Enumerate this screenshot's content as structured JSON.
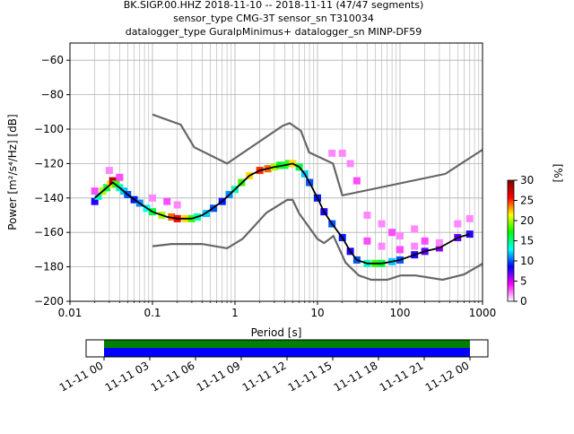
{
  "title_lines": [
    "BK.SIGP.00.HHZ   2018-11-10 -- 2018-11-11  (47/47 segments)",
    "sensor_type CMG-3T sensor_sn T310034",
    "datalogger_type GuralpMinimus+ datalogger_sn MINP-DF59"
  ],
  "chart_data": [
    {
      "type": "heatmap",
      "xlabel": "Period [s]",
      "ylabel": "Power [m²/s⁴/Hz] [dB]",
      "xscale": "log",
      "xlim": [
        0.01,
        1000
      ],
      "ylim": [
        -200,
        -50
      ],
      "x_ticks": [
        {
          "value": 0.01,
          "label": "0.01"
        },
        {
          "value": 0.1,
          "label": "0.1"
        },
        {
          "value": 1,
          "label": "1"
        },
        {
          "value": 10,
          "label": "10"
        },
        {
          "value": 100,
          "label": "100"
        },
        {
          "value": 1000,
          "label": "1000"
        }
      ],
      "y_ticks": [
        {
          "value": -60,
          "label": "−60"
        },
        {
          "value": -80,
          "label": "−80"
        },
        {
          "value": -100,
          "label": "−100"
        },
        {
          "value": -120,
          "label": "−120"
        },
        {
          "value": -140,
          "label": "−140"
        },
        {
          "value": -160,
          "label": "−160"
        },
        {
          "value": -180,
          "label": "−180"
        },
        {
          "value": -200,
          "label": "−200"
        }
      ],
      "grid": true,
      "colorbar": {
        "label": "[%]",
        "range": [
          0,
          30
        ],
        "ticks": [
          0,
          5,
          10,
          15,
          20,
          25,
          30
        ],
        "colormap": [
          "#ffffff",
          "#ff00ff",
          "#0000ff",
          "#00ffff",
          "#00ff00",
          "#ffff00",
          "#ff0000",
          "#800000"
        ]
      },
      "series": [
        {
          "role": "mode",
          "color": "#000000",
          "x": [
            0.02,
            0.025,
            0.033,
            0.04,
            0.05,
            0.07,
            0.1,
            0.15,
            0.2,
            0.3,
            0.4,
            0.5,
            0.7,
            1,
            1.5,
            2,
            3,
            4,
            5,
            6,
            7,
            8,
            10,
            12,
            15,
            20,
            25,
            30,
            40,
            50,
            60,
            80,
            100,
            150,
            200,
            300,
            500,
            700
          ],
          "y": [
            -140,
            -136,
            -131,
            -134,
            -138,
            -143,
            -148,
            -151,
            -152,
            -152,
            -150,
            -147,
            -142,
            -135,
            -127,
            -124,
            -122,
            -121,
            -120,
            -122,
            -126,
            -131,
            -140,
            -148,
            -155,
            -163,
            -171,
            -176,
            -178,
            -178,
            -178,
            -177,
            -176,
            -173,
            -171,
            -169,
            -163,
            -161
          ]
        },
        {
          "role": "new-high-noise-model",
          "color": "#666666",
          "x": [
            0.1,
            0.22,
            0.32,
            0.8,
            3.8,
            4.6,
            6.3,
            7.9,
            15.4,
            20,
            354.8,
            1000
          ],
          "y": [
            -91.5,
            -97.4,
            -110.5,
            -120,
            -98,
            -96.5,
            -101,
            -113.5,
            -120,
            -138.5,
            -126,
            -112
          ]
        },
        {
          "role": "new-low-noise-model",
          "color": "#666666",
          "x": [
            0.1,
            0.17,
            0.4,
            0.8,
            1.24,
            2.4,
            4.3,
            5,
            6,
            10,
            12,
            15.6,
            21.9,
            31.6,
            45,
            70,
            101,
            154,
            328,
            600,
            1000
          ],
          "y": [
            -168,
            -166.7,
            -166.7,
            -169.2,
            -163.7,
            -148.6,
            -141.1,
            -141.1,
            -149,
            -163.8,
            -166.2,
            -162.1,
            -177.5,
            -185,
            -187.5,
            -187.5,
            -185,
            -185,
            -187.5,
            -184.4,
            -178.2
          ]
        }
      ],
      "heatmap_cells": [
        {
          "x": 0.02,
          "y": -142,
          "pct": 8
        },
        {
          "x": 0.022,
          "y": -139,
          "pct": 14
        },
        {
          "x": 0.025,
          "y": -136,
          "pct": 20
        },
        {
          "x": 0.028,
          "y": -134,
          "pct": 16
        },
        {
          "x": 0.031,
          "y": -132,
          "pct": 22
        },
        {
          "x": 0.033,
          "y": -130,
          "pct": 28
        },
        {
          "x": 0.036,
          "y": -132,
          "pct": 18
        },
        {
          "x": 0.04,
          "y": -134,
          "pct": 14
        },
        {
          "x": 0.045,
          "y": -136,
          "pct": 12
        },
        {
          "x": 0.05,
          "y": -138,
          "pct": 10
        },
        {
          "x": 0.06,
          "y": -141,
          "pct": 9
        },
        {
          "x": 0.07,
          "y": -143,
          "pct": 11
        },
        {
          "x": 0.085,
          "y": -146,
          "pct": 13
        },
        {
          "x": 0.1,
          "y": -148,
          "pct": 16
        },
        {
          "x": 0.13,
          "y": -150,
          "pct": 20
        },
        {
          "x": 0.17,
          "y": -151,
          "pct": 24
        },
        {
          "x": 0.2,
          "y": -152,
          "pct": 26
        },
        {
          "x": 0.25,
          "y": -152,
          "pct": 22
        },
        {
          "x": 0.3,
          "y": -152,
          "pct": 18
        },
        {
          "x": 0.35,
          "y": -151,
          "pct": 14
        },
        {
          "x": 0.45,
          "y": -149,
          "pct": 12
        },
        {
          "x": 0.55,
          "y": -146,
          "pct": 10
        },
        {
          "x": 0.7,
          "y": -142,
          "pct": 9
        },
        {
          "x": 0.85,
          "y": -138,
          "pct": 11
        },
        {
          "x": 1,
          "y": -135,
          "pct": 14
        },
        {
          "x": 1.2,
          "y": -131,
          "pct": 18
        },
        {
          "x": 1.5,
          "y": -127,
          "pct": 22
        },
        {
          "x": 2,
          "y": -124,
          "pct": 25
        },
        {
          "x": 2.5,
          "y": -123,
          "pct": 24
        },
        {
          "x": 3,
          "y": -122,
          "pct": 20
        },
        {
          "x": 3.5,
          "y": -121,
          "pct": 17
        },
        {
          "x": 4,
          "y": -121,
          "pct": 16
        },
        {
          "x": 4.5,
          "y": -120,
          "pct": 18
        },
        {
          "x": 5,
          "y": -120,
          "pct": 22
        },
        {
          "x": 6,
          "y": -122,
          "pct": 16
        },
        {
          "x": 7,
          "y": -126,
          "pct": 12
        },
        {
          "x": 8,
          "y": -131,
          "pct": 10
        },
        {
          "x": 10,
          "y": -140,
          "pct": 9
        },
        {
          "x": 12,
          "y": -148,
          "pct": 8
        },
        {
          "x": 15,
          "y": -155,
          "pct": 10
        },
        {
          "x": 20,
          "y": -163,
          "pct": 9
        },
        {
          "x": 25,
          "y": -171,
          "pct": 8
        },
        {
          "x": 30,
          "y": -176,
          "pct": 10
        },
        {
          "x": 40,
          "y": -178,
          "pct": 14
        },
        {
          "x": 50,
          "y": -178,
          "pct": 18
        },
        {
          "x": 60,
          "y": -178,
          "pct": 16
        },
        {
          "x": 80,
          "y": -177,
          "pct": 12
        },
        {
          "x": 100,
          "y": -176,
          "pct": 10
        },
        {
          "x": 150,
          "y": -173,
          "pct": 8
        },
        {
          "x": 200,
          "y": -171,
          "pct": 7
        },
        {
          "x": 300,
          "y": -169,
          "pct": 6
        },
        {
          "x": 500,
          "y": -163,
          "pct": 7
        },
        {
          "x": 700,
          "y": -161,
          "pct": 8
        },
        {
          "x": 0.02,
          "y": -136,
          "pct": 3
        },
        {
          "x": 0.03,
          "y": -124,
          "pct": 2
        },
        {
          "x": 0.04,
          "y": -128,
          "pct": 3
        },
        {
          "x": 0.1,
          "y": -140,
          "pct": 2
        },
        {
          "x": 0.15,
          "y": -142,
          "pct": 3
        },
        {
          "x": 0.2,
          "y": -144,
          "pct": 2
        },
        {
          "x": 15,
          "y": -114,
          "pct": 2
        },
        {
          "x": 20,
          "y": -114,
          "pct": 2
        },
        {
          "x": 25,
          "y": -120,
          "pct": 2
        },
        {
          "x": 30,
          "y": -130,
          "pct": 3
        },
        {
          "x": 40,
          "y": -150,
          "pct": 2
        },
        {
          "x": 60,
          "y": -155,
          "pct": 2
        },
        {
          "x": 80,
          "y": -160,
          "pct": 3
        },
        {
          "x": 100,
          "y": -162,
          "pct": 2
        },
        {
          "x": 150,
          "y": -158,
          "pct": 2
        },
        {
          "x": 200,
          "y": -165,
          "pct": 3
        },
        {
          "x": 300,
          "y": -166,
          "pct": 2
        },
        {
          "x": 500,
          "y": -155,
          "pct": 2
        },
        {
          "x": 700,
          "y": -152,
          "pct": 2
        },
        {
          "x": 40,
          "y": -165,
          "pct": 3
        },
        {
          "x": 60,
          "y": -168,
          "pct": 2
        },
        {
          "x": 100,
          "y": -170,
          "pct": 3
        },
        {
          "x": 150,
          "y": -168,
          "pct": 2
        }
      ]
    },
    {
      "type": "bar",
      "title": "",
      "x_ticks": [
        "11-11 00",
        "11-11 03",
        "11-11 06",
        "11-11 09",
        "11-11 12",
        "11-11 15",
        "11-11 18",
        "11-11 21",
        "11-12 00"
      ],
      "bands": [
        {
          "name": "",
          "color": "#008000"
        },
        {
          "name": "",
          "color": "#0000ff"
        }
      ]
    }
  ]
}
